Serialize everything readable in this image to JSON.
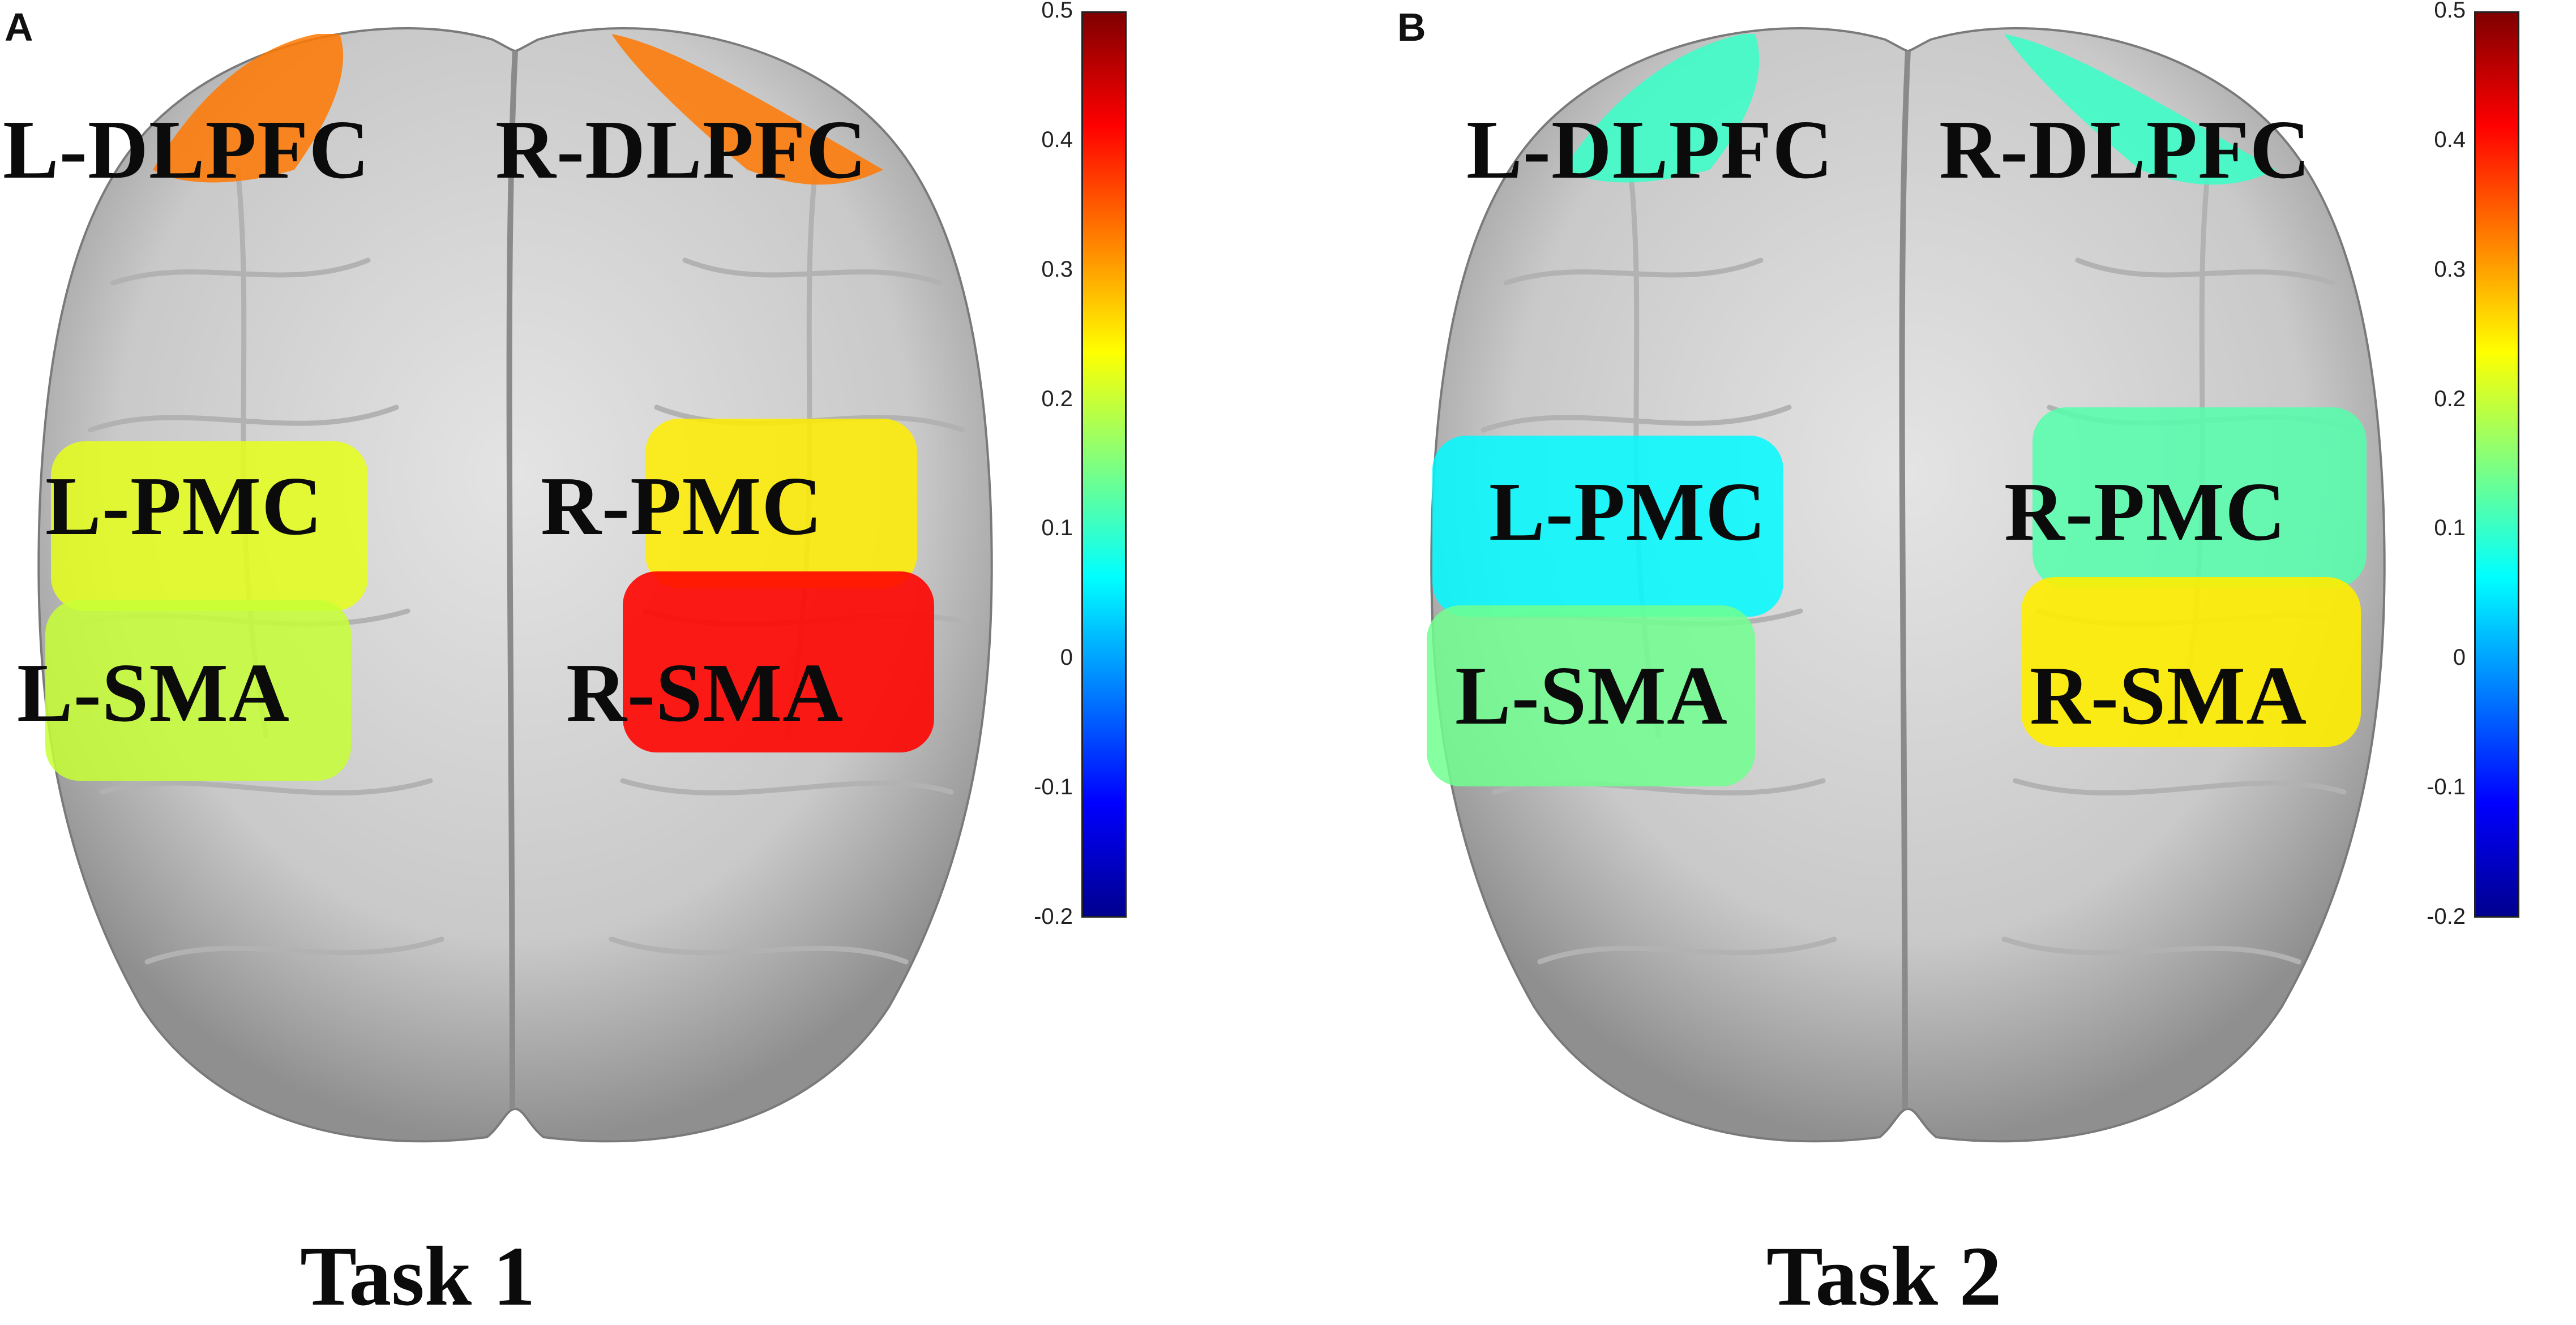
{
  "colormap": {
    "name": "jet",
    "min": -0.2,
    "max": 0.5,
    "ticks": [
      "0.5",
      "0.4",
      "0.3",
      "0.2",
      "0.1",
      "0",
      "-0.1",
      "-0.2"
    ],
    "stops": [
      "#00008f",
      "#0000ff",
      "#007fff",
      "#00ffff",
      "#7fff7f",
      "#ffff00",
      "#ff7f00",
      "#ff0000",
      "#7f0000"
    ]
  },
  "panels": [
    {
      "letter": "A",
      "task": "Task 1",
      "regions": [
        {
          "label": "L-DLPFC",
          "value": 0.33
        },
        {
          "label": "R-DLPFC",
          "value": 0.33
        },
        {
          "label": "L-PMC",
          "value": 0.22
        },
        {
          "label": "R-PMC",
          "value": 0.25
        },
        {
          "label": "L-SMA",
          "value": 0.2
        },
        {
          "label": "R-SMA",
          "value": 0.41
        }
      ]
    },
    {
      "letter": "B",
      "task": "Task 2",
      "regions": [
        {
          "label": "L-DLPFC",
          "value": 0.1
        },
        {
          "label": "R-DLPFC",
          "value": 0.1
        },
        {
          "label": "L-PMC",
          "value": 0.06
        },
        {
          "label": "R-PMC",
          "value": 0.12
        },
        {
          "label": "L-SMA",
          "value": 0.14
        },
        {
          "label": "R-SMA",
          "value": 0.25
        }
      ]
    }
  ]
}
